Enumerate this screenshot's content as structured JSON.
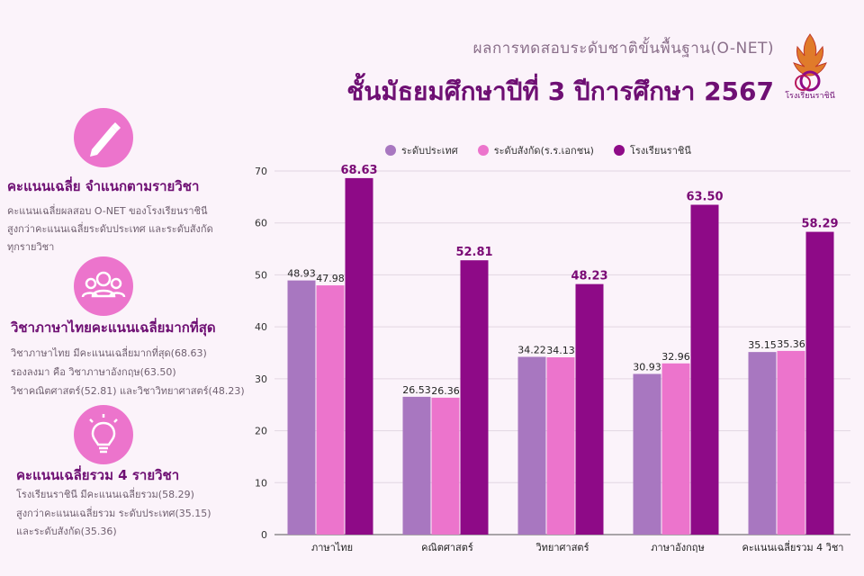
{
  "header": {
    "subtitle": "ผลการทดสอบระดับชาติขั้นพื้นฐาน(O-NET)",
    "title": "ชั้นมัธยมศึกษาปีที่ 3 ปีการศึกษา 2567",
    "logo_text": "โรงเรียนราชินี"
  },
  "sections": [
    {
      "icon": "pen-icon",
      "heading": "คะแนนเฉลี่ย จำแนกตามรายวิชา",
      "lines": [
        "คะแนนเฉลี่ยผลสอบ O-NET ของโรงเรียนราชินี",
        "สูงกว่าคะแนนเฉลี่ยระดับประเทศ และระดับสังกัด",
        "ทุกรายวิชา"
      ]
    },
    {
      "icon": "group-icon",
      "heading": "วิชาภาษาไทยคะแนนเฉลี่ยมากที่สุด",
      "lines": [
        "วิชาภาษาไทย มีคะแนนเฉลี่ยมากที่สุด(68.63)",
        "รองลงมา คือ วิชาภาษาอังกฤษ(63.50)",
        "วิชาคณิตศาสตร์(52.81) และวิชาวิทยาศาสตร์(48.23)"
      ]
    },
    {
      "icon": "lightbulb-icon",
      "heading": "คะแนนเฉลี่ยรวม 4 รายวิชา",
      "lines": [
        "โรงเรียนราชินี มีคะแนนเฉลี่ยรวม(58.29)",
        "สูงกว่าคะแนนเฉลี่ยรวม ระดับประเทศ(35.15)",
        "และระดับสังกัด(35.36)"
      ]
    }
  ],
  "colors": {
    "national": "#a877c0",
    "affiliation": "#ec74cc",
    "school": "#8e0a87",
    "title": "#6e0f73"
  },
  "chart_data": {
    "type": "bar",
    "categories": [
      "ภาษาไทย",
      "คณิตศาสตร์",
      "วิทยาศาสตร์",
      "ภาษาอังกฤษ",
      "คะแนนเฉลี่ยรวม 4 วิชา"
    ],
    "series": [
      {
        "name": "ระดับประเทศ",
        "values": [
          48.93,
          26.53,
          34.22,
          30.93,
          35.15
        ]
      },
      {
        "name": "ระดับสังกัด(ร.ร.เอกชน)",
        "values": [
          47.98,
          26.36,
          34.13,
          32.96,
          35.36
        ]
      },
      {
        "name": "โรงเรียนราชินี",
        "values": [
          68.63,
          52.81,
          48.23,
          63.5,
          58.29
        ]
      }
    ],
    "data_labels": [
      [
        "48.93",
        "26.53",
        "34.22",
        "30.93",
        "35.15"
      ],
      [
        "47.98",
        "26.36",
        "34.13",
        "32.96",
        "35.36"
      ],
      [
        "68.63",
        "52.81",
        "48.23",
        "63.50",
        "58.29"
      ]
    ],
    "ylim": [
      0,
      70
    ],
    "yticks": [
      0,
      10,
      20,
      30,
      40,
      50,
      60,
      70
    ],
    "ytick_labels": [
      "0",
      "10",
      "20",
      "30",
      "40",
      "50",
      "60",
      "70"
    ],
    "grid": true,
    "legend_position": "top"
  }
}
